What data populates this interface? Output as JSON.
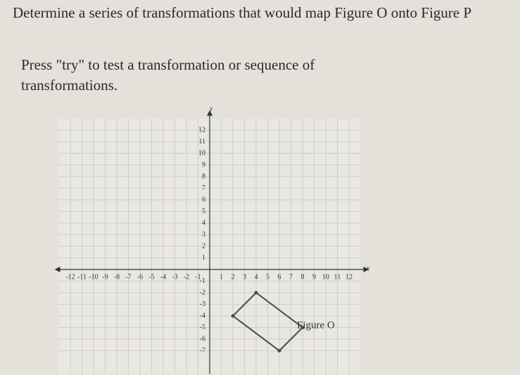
{
  "header": {
    "title": "Determine a series of transformations that would map Figure O onto Figure P",
    "instruction": "Press \"try\" to test a transformation or sequence of transformations."
  },
  "chart_data": {
    "type": "coordinate-plane",
    "x_label": "x",
    "y_label": "y",
    "xlim": [
      -13,
      13
    ],
    "ylim": [
      -9,
      13
    ],
    "xticks": [
      -12,
      -11,
      -10,
      -9,
      -8,
      -7,
      -6,
      -5,
      -4,
      -3,
      -2,
      -1,
      1,
      2,
      3,
      4,
      5,
      6,
      7,
      8,
      9,
      10,
      11,
      12
    ],
    "yticks": [
      -7,
      -6,
      -5,
      -4,
      -3,
      -2,
      -1,
      1,
      2,
      3,
      4,
      5,
      6,
      7,
      8,
      9,
      10,
      11,
      12
    ],
    "grid": true,
    "figures": [
      {
        "name": "Figure O",
        "color": "#4a4a4a",
        "x": [
          4,
          8,
          6,
          2
        ],
        "y": [
          -2,
          -5,
          -7,
          -4
        ]
      }
    ]
  }
}
